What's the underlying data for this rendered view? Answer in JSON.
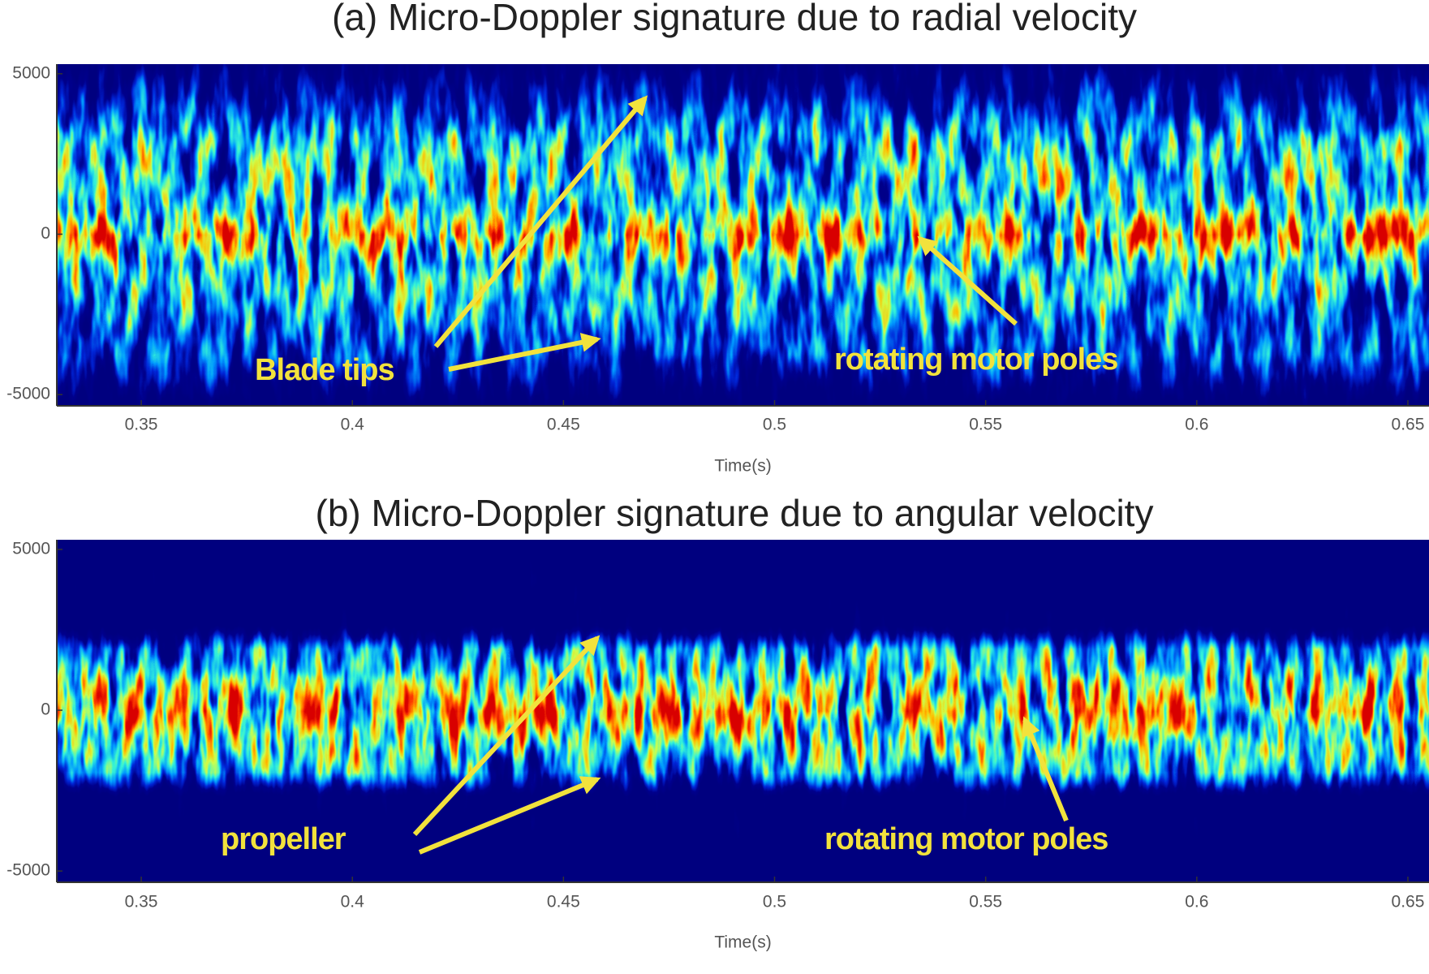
{
  "chart_data": [
    {
      "type": "spectrogram",
      "title": "(a) Micro-Doppler  signature due to radial velocity",
      "xlabel": "Time(s)",
      "xlim": [
        0.33,
        0.655
      ],
      "xticks": [
        0.35,
        0.4,
        0.45,
        0.5,
        0.55,
        0.6,
        0.65
      ],
      "ylim": [
        -5350,
        5300
      ],
      "yticks": [
        5000,
        0,
        -5000
      ],
      "colormap": "jet",
      "annotations": [
        "Blade tips",
        "rotating motor poles"
      ]
    },
    {
      "type": "spectrogram",
      "title": "(b) Micro-Doppler  signature due to angular velocity",
      "xlabel": "Time(s)",
      "xlim": [
        0.33,
        0.655
      ],
      "xticks": [
        0.35,
        0.4,
        0.45,
        0.5,
        0.55,
        0.6,
        0.65
      ],
      "ylim": [
        -5350,
        5300
      ],
      "yticks": [
        5000,
        0,
        -5000
      ],
      "colormap": "jet",
      "annotations": [
        "propeller",
        "rotating motor poles"
      ]
    }
  ]
}
